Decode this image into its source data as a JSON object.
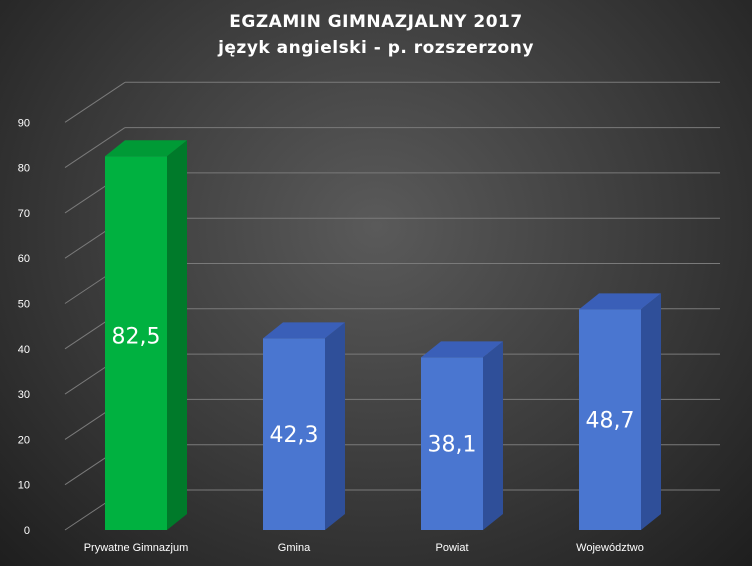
{
  "chart_data": {
    "type": "bar",
    "title": "EGZAMIN  GIMNAZJALNY  2017",
    "subtitle": "język angielski  - p. rozszerzony",
    "categories": [
      "Prywatne Gimnazjum",
      "Gmina",
      "Powiat",
      "Województwo"
    ],
    "values": [
      82.5,
      42.3,
      38.1,
      48.7
    ],
    "value_labels": [
      "82,5",
      "42,3",
      "38,1",
      "48,7"
    ],
    "yticks": [
      "0",
      "10",
      "20",
      "30",
      "40",
      "50",
      "60",
      "70",
      "80",
      "90"
    ],
    "ylim": [
      0,
      90
    ],
    "grid": true,
    "legend": "none",
    "colors": {
      "highlight_front": "#00b140",
      "highlight_side": "#007a2a",
      "highlight_top": "#009a36",
      "bar_front": "#4a76d0",
      "bar_side": "#2f4f99",
      "bar_top": "#3a5fb8",
      "grid": "#7a7a7a",
      "text": "#ffffff"
    },
    "highlight_index": 0
  }
}
